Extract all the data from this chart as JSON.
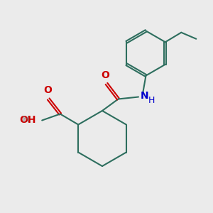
{
  "bg_color": "#ebebeb",
  "bond_lw": 1.5,
  "bond_color": "#2d6e5e",
  "red": "#cc0000",
  "blue": "#0000cc",
  "dark": "#3a3a3a",
  "figsize": [
    3.0,
    3.0
  ],
  "dpi": 100,
  "xlim": [
    0,
    10
  ],
  "ylim": [
    0,
    10
  ]
}
